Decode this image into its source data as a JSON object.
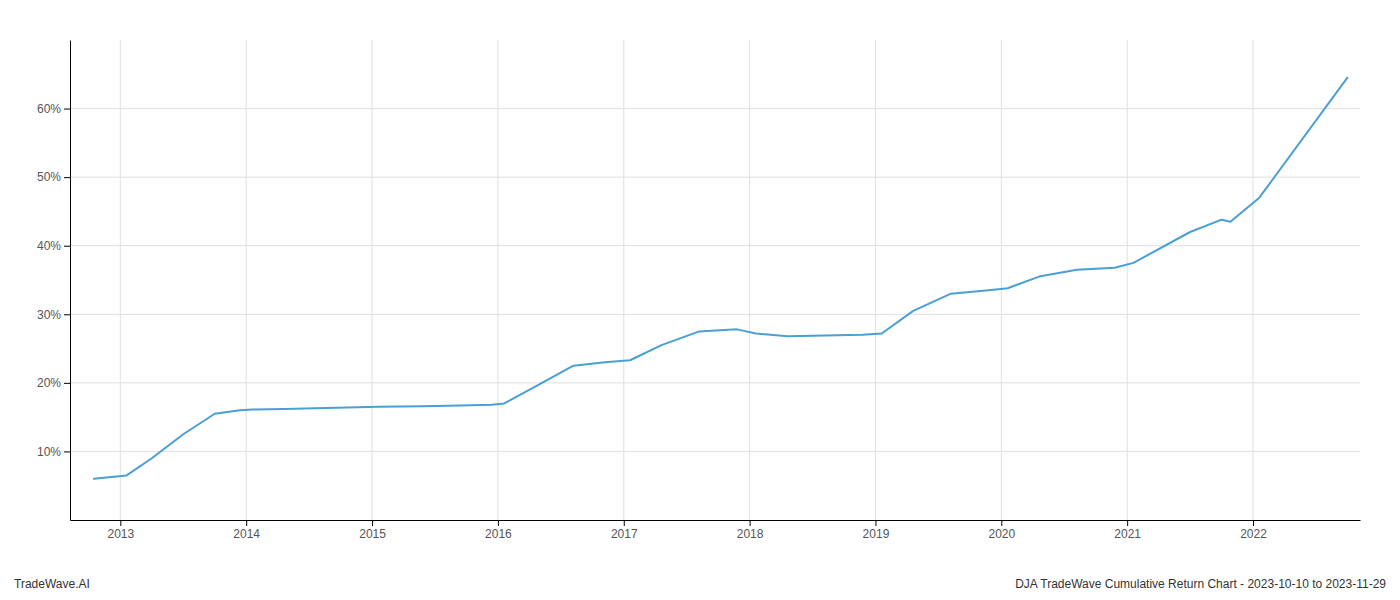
{
  "chart_data": {
    "type": "line",
    "color": "#4a9fd4",
    "grid": true,
    "x": [
      2012.79,
      2013.05,
      2013.25,
      2013.5,
      2013.75,
      2013.95,
      2014.05,
      2014.3,
      2014.55,
      2014.8,
      2015.05,
      2015.4,
      2015.7,
      2015.95,
      2016.05,
      2016.3,
      2016.6,
      2016.85,
      2017.05,
      2017.3,
      2017.6,
      2017.9,
      2018.05,
      2018.3,
      2018.6,
      2018.9,
      2019.05,
      2019.3,
      2019.6,
      2019.9,
      2020.05,
      2020.3,
      2020.6,
      2020.9,
      2021.05,
      2021.5,
      2021.75,
      2021.82,
      2022.05,
      2022.75
    ],
    "values": [
      6.0,
      6.5,
      9.0,
      12.5,
      15.5,
      16.0,
      16.1,
      16.2,
      16.3,
      16.4,
      16.5,
      16.6,
      16.7,
      16.8,
      17.0,
      19.5,
      22.5,
      23.0,
      23.3,
      25.5,
      27.5,
      27.8,
      27.2,
      26.8,
      26.9,
      27.0,
      27.2,
      30.5,
      33.0,
      33.5,
      33.8,
      35.5,
      36.5,
      36.8,
      37.5,
      42.0,
      43.8,
      43.5,
      47.0,
      64.5
    ],
    "xlim": [
      2012.6,
      2022.85
    ],
    "xticks": [
      2013,
      2014,
      2015,
      2016,
      2017,
      2018,
      2019,
      2020,
      2021,
      2022
    ],
    "ylim": [
      0,
      70
    ],
    "yticks": [
      {
        "value": 10,
        "label": "10%"
      },
      {
        "value": 20,
        "label": "20%"
      },
      {
        "value": 30,
        "label": "30%"
      },
      {
        "value": 40,
        "label": "40%"
      },
      {
        "value": 50,
        "label": "50%"
      },
      {
        "value": 60,
        "label": "60%"
      }
    ],
    "annotations": [
      "TradeWave.AI",
      "DJA TradeWave Cumulative Return Chart - 2023-10-10 to 2023-11-29"
    ]
  }
}
